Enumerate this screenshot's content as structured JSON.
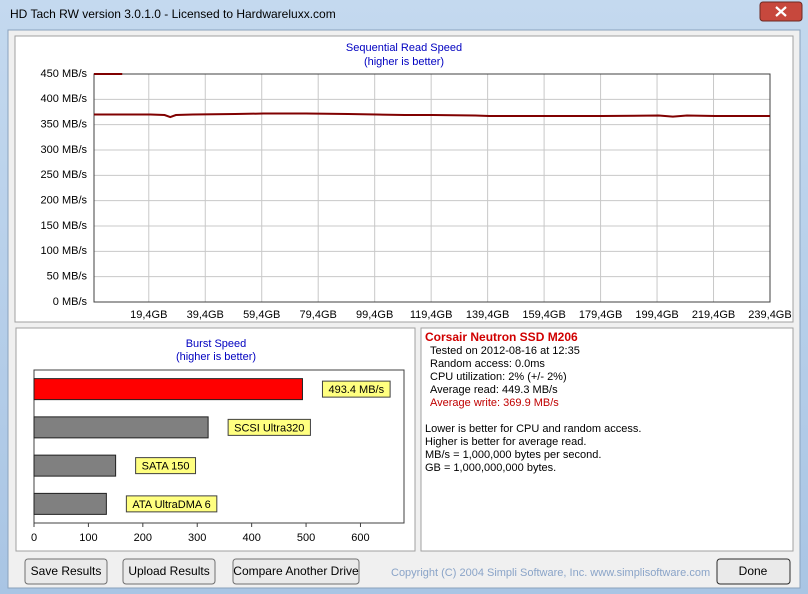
{
  "window": {
    "title": "HD Tach RW version 3.0.1.0 - Licensed to Hardwareluxx.com"
  },
  "chart_data": [
    {
      "type": "line",
      "title": "Sequential Read Speed",
      "subtitle": "(higher is better)",
      "x": [
        0,
        10,
        20,
        25,
        27,
        29,
        35,
        50,
        60,
        75,
        90,
        100,
        110,
        120,
        135,
        140,
        160,
        180,
        200,
        205,
        210,
        220,
        239.4
      ],
      "series": [
        {
          "color": "#800000",
          "values": [
            370,
            370,
            370,
            369,
            365,
            369,
            370,
            371,
            372,
            372,
            371,
            370,
            369,
            369,
            368,
            367,
            367,
            367,
            368,
            366,
            368,
            367,
            367
          ]
        },
        {
          "color": "#800000",
          "values": [
            450,
            450,
            null,
            null,
            null,
            null,
            null,
            null,
            null,
            null,
            null,
            null,
            null,
            null,
            null,
            null,
            null,
            null,
            null,
            null,
            null,
            null,
            null
          ]
        }
      ],
      "xlim": [
        0,
        239.4
      ],
      "xticks": [
        {
          "value": 19.4,
          "label": "19,4GB"
        },
        {
          "value": 39.4,
          "label": "39,4GB"
        },
        {
          "value": 59.4,
          "label": "59,4GB"
        },
        {
          "value": 79.4,
          "label": "79,4GB"
        },
        {
          "value": 99.4,
          "label": "99,4GB"
        },
        {
          "value": 119.4,
          "label": "119,4GB"
        },
        {
          "value": 139.4,
          "label": "139,4GB"
        },
        {
          "value": 159.4,
          "label": "159,4GB"
        },
        {
          "value": 179.4,
          "label": "179,4GB"
        },
        {
          "value": 199.4,
          "label": "199,4GB"
        },
        {
          "value": 219.4,
          "label": "219,4GB"
        },
        {
          "value": 239.4,
          "label": "239,4GB"
        }
      ],
      "ylim": [
        0,
        450
      ],
      "yticks": [
        {
          "value": 0,
          "label": "0 MB/s"
        },
        {
          "value": 50,
          "label": "50 MB/s"
        },
        {
          "value": 100,
          "label": "100 MB/s"
        },
        {
          "value": 150,
          "label": "150 MB/s"
        },
        {
          "value": 200,
          "label": "200 MB/s"
        },
        {
          "value": 250,
          "label": "250 MB/s"
        },
        {
          "value": 300,
          "label": "300 MB/s"
        },
        {
          "value": 350,
          "label": "350 MB/s"
        },
        {
          "value": 400,
          "label": "400 MB/s"
        },
        {
          "value": 450,
          "label": "450 MB/s"
        }
      ],
      "grid": true
    },
    {
      "type": "bar",
      "orientation": "horizontal",
      "title": "Burst Speed",
      "subtitle": "(higher is better)",
      "categories": [
        null,
        "SCSI Ultra320",
        "SATA 150",
        "ATA UltraDMA 6"
      ],
      "values": [
        493.4,
        320,
        150,
        133
      ],
      "value_labels": [
        "493.4 MB/s",
        null,
        null,
        null
      ],
      "colors": [
        "#ff0000",
        "#808080",
        "#808080",
        "#808080"
      ],
      "xlim": [
        0,
        680
      ],
      "xticks": [
        0,
        100,
        200,
        300,
        400,
        500,
        600
      ],
      "grid": false
    }
  ],
  "info": {
    "title": "Corsair Neutron SSD M206",
    "lines": [
      "Tested on 2012-08-16 at 12:35",
      "Random access: 0.0ms",
      "CPU utilization: 2% (+/- 2%)",
      "Average read: 449.3 MB/s",
      "Average write: 369.9 MB/s"
    ],
    "notes": [
      "Lower is better for CPU and random access.",
      "Higher is better for average read.",
      "MB/s = 1,000,000 bytes per second.",
      "GB = 1,000,000,000 bytes."
    ]
  },
  "buttons": [
    "Save Results",
    "Upload Results",
    "Compare Another Drive",
    "Done"
  ],
  "copyright": "Copyright (C) 2004 Simpli Software, Inc. www.simplisoftware.com"
}
